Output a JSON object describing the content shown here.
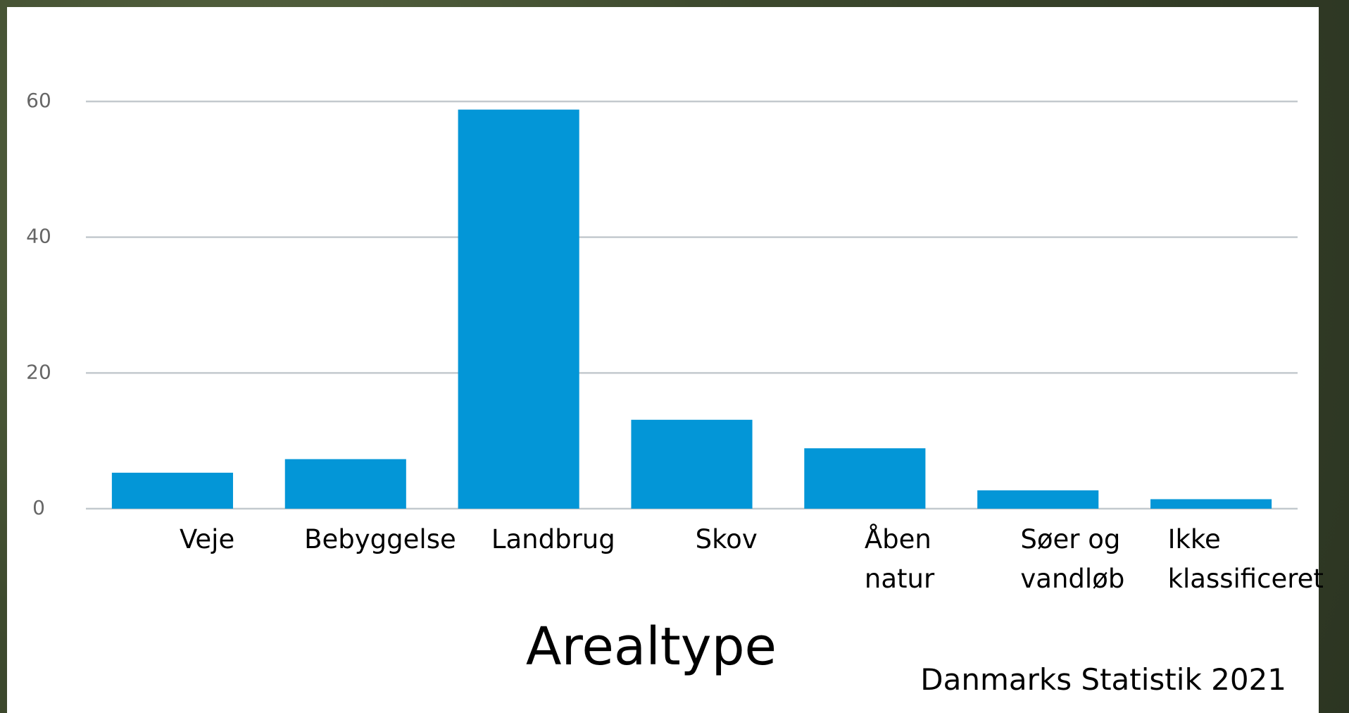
{
  "chart_data": {
    "type": "bar",
    "x_label": "Arealtype",
    "source": "Danmarks Statistik 2021",
    "categories": [
      "Veje",
      "Bebyggelse",
      "Landbrug",
      "Skov",
      "Åben\nnatur",
      "Søer og\nvandløb",
      "Ikke\nklassificeret"
    ],
    "values": [
      5.3,
      7.3,
      58.8,
      13.1,
      8.9,
      2.7,
      1.4
    ],
    "color": "#0396d7",
    "ylim": [
      0,
      60
    ],
    "yticks": [
      0,
      20,
      40,
      60
    ],
    "grid": true
  }
}
